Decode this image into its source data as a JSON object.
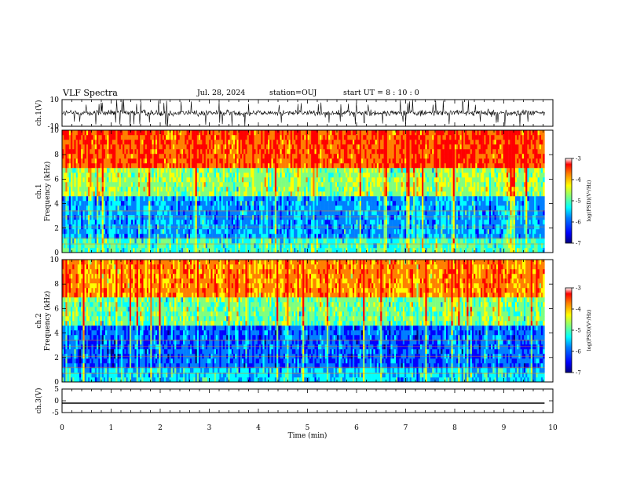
{
  "header": {
    "title": "VLF Spectra",
    "date": "Jul. 28, 2024",
    "station": "station=OUJ",
    "start_ut": "start UT =  8 : 10 : 0"
  },
  "chart_data": [
    {
      "type": "line",
      "panel": "ch1-waveform",
      "ylabel": "ch.1(V)",
      "ylim": [
        -10,
        10
      ],
      "yticks": [
        "10",
        "-10"
      ],
      "xlim": [
        0,
        10
      ],
      "description_values": "dense noise waveform between about -5 V and +5 V, occasional spikes to ±10 V"
    },
    {
      "type": "heatmap",
      "panel": "ch1-spectrogram",
      "ylabel": "ch.1",
      "ylabel2": "Frequency (kHz)",
      "ylim": [
        0,
        10
      ],
      "yticks": [
        "0",
        "2",
        "4",
        "6",
        "8",
        "10"
      ],
      "xlim": [
        0,
        10
      ],
      "data_extent_min": 9.83,
      "colorbar": {
        "label": "log(PSD)(V²/Hz)",
        "range": [
          -7,
          -3
        ],
        "ticks": [
          "-3",
          "-4",
          "-5",
          "-6",
          "-7"
        ]
      },
      "bands": [
        {
          "freq_khz": [
            0,
            1
          ],
          "log_psd": -5.0
        },
        {
          "freq_khz": [
            1,
            4.5
          ],
          "log_psd": -5.6
        },
        {
          "freq_khz": [
            4.5,
            7
          ],
          "log_psd": -4.6
        },
        {
          "freq_khz": [
            7,
            10
          ],
          "log_psd": -3.5
        }
      ]
    },
    {
      "type": "heatmap",
      "panel": "ch2-spectrogram",
      "ylabel": "ch.2",
      "ylabel2": "Frequency (kHz)",
      "ylim": [
        0,
        10
      ],
      "yticks": [
        "0",
        "2",
        "4",
        "6",
        "8",
        "10"
      ],
      "xlim": [
        0,
        10
      ],
      "data_extent_min": 9.83,
      "colorbar": {
        "label": "log(PSD)(V²/Hz)",
        "range": [
          -7,
          -3
        ],
        "ticks": [
          "-3",
          "-4",
          "-5",
          "-6",
          "-7"
        ]
      },
      "bands": [
        {
          "freq_khz": [
            0,
            1
          ],
          "log_psd": -5.4
        },
        {
          "freq_khz": [
            1,
            4.5
          ],
          "log_psd": -5.9
        },
        {
          "freq_khz": [
            4.5,
            7
          ],
          "log_psd": -4.8
        },
        {
          "freq_khz": [
            7,
            10
          ],
          "log_psd": -3.8
        }
      ]
    },
    {
      "type": "line",
      "panel": "ch3-waveform",
      "ylabel": "ch.3(V)",
      "ylim": [
        -5,
        5
      ],
      "yticks": [
        "5",
        "0",
        "-5"
      ],
      "xlim": [
        0,
        10
      ],
      "xlabel": "Time (min)",
      "xticks": [
        "0",
        "1",
        "2",
        "3",
        "4",
        "5",
        "6",
        "7",
        "8",
        "9",
        "10"
      ],
      "x": [
        0,
        9.83
      ],
      "y": [
        -1,
        -1
      ]
    }
  ],
  "colors": {
    "colormap": [
      "#00007f",
      "#0000ff",
      "#007fff",
      "#00ffff",
      "#7fff7f",
      "#ffff00",
      "#ff7f00",
      "#ff0000",
      "#ffffff"
    ]
  }
}
